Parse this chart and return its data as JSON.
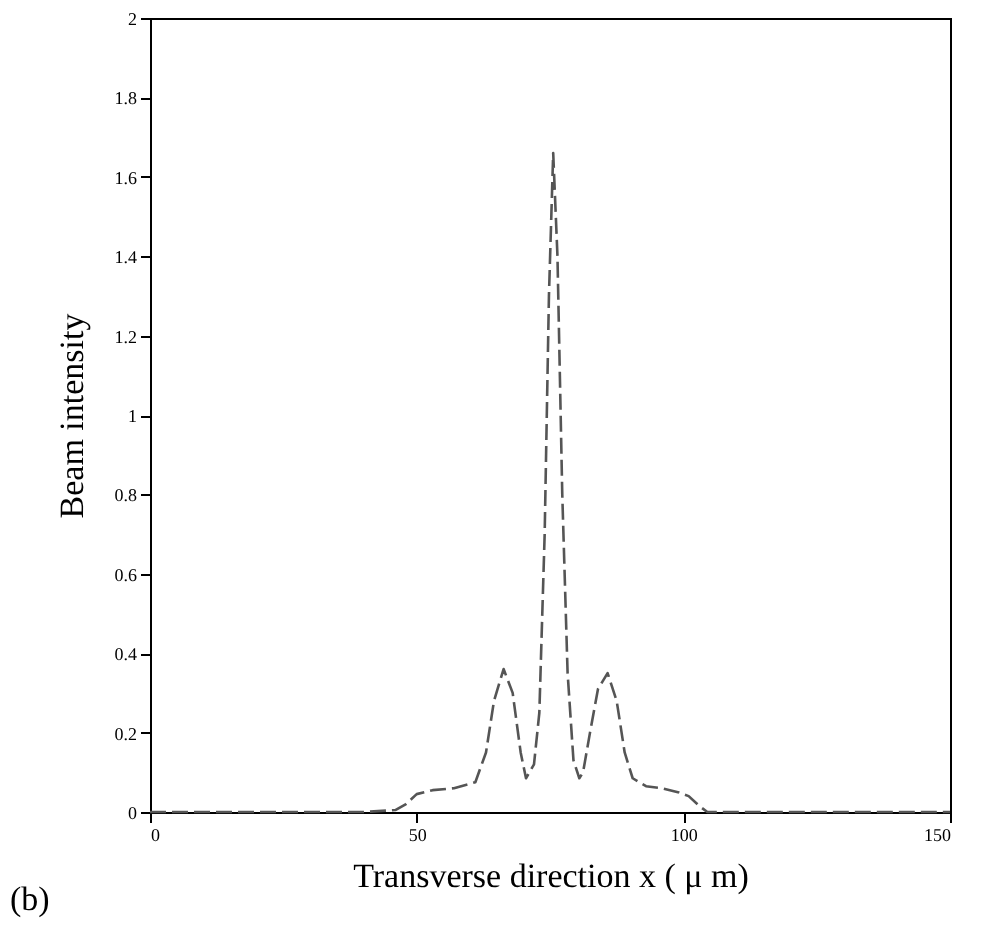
{
  "chart_data": {
    "type": "line",
    "xlabel": "Transverse direction x ( μ m)",
    "ylabel": "Beam intensity",
    "annotations": [
      "(b)"
    ],
    "x": [
      0,
      20,
      40,
      46,
      48,
      50,
      53,
      57,
      61,
      63,
      64.5,
      66.3,
      68,
      69.5,
      70.5,
      72,
      73,
      74,
      74.8,
      75.6,
      76.4,
      77.3,
      78.3,
      79.4,
      80.5,
      81.2,
      82.5,
      84,
      85.8,
      87.5,
      89,
      90.5,
      93,
      96,
      99,
      101,
      103,
      104.5,
      120,
      150
    ],
    "series": [
      {
        "color": "#555555",
        "values": [
          0,
          0,
          0,
          0.005,
          0.02,
          0.045,
          0.055,
          0.06,
          0.075,
          0.15,
          0.28,
          0.36,
          0.3,
          0.15,
          0.085,
          0.12,
          0.25,
          0.7,
          1.3,
          1.66,
          1.4,
          0.8,
          0.35,
          0.13,
          0.085,
          0.1,
          0.2,
          0.31,
          0.35,
          0.28,
          0.15,
          0.085,
          0.065,
          0.06,
          0.05,
          0.04,
          0.015,
          0,
          0,
          0
        ]
      }
    ],
    "xlim": [
      0,
      150
    ],
    "xticks": [
      0,
      50,
      100,
      150
    ],
    "ylim": [
      0,
      2
    ],
    "yticks": [
      0,
      0.2,
      0.4,
      0.6,
      0.8,
      1,
      1.2,
      1.4,
      1.6,
      1.8,
      2
    ],
    "grid": false,
    "line_style": "dashed"
  }
}
